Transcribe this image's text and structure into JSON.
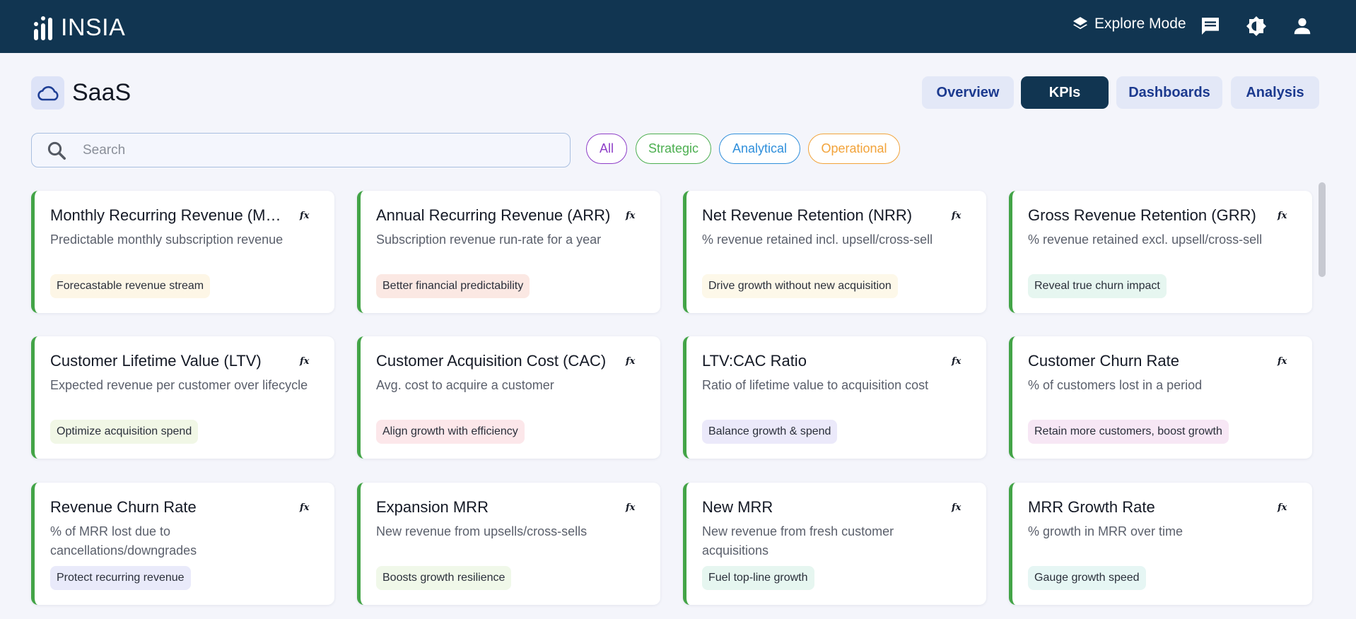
{
  "app": {
    "logo_text": "INSIA",
    "explore_mode_label": "Explore Mode",
    "header_icons": [
      "chat-icon",
      "brightness-icon",
      "user-icon"
    ]
  },
  "page": {
    "title": "SaaS",
    "icon": "cloud-icon"
  },
  "tabs": [
    {
      "label": "Overview",
      "active": false
    },
    {
      "label": "KPIs",
      "active": true
    },
    {
      "label": "Dashboards",
      "active": false
    },
    {
      "label": "Analysis",
      "active": false
    }
  ],
  "search": {
    "placeholder": "Search",
    "value": ""
  },
  "filters": [
    {
      "label": "All",
      "color": "#8e3ec8"
    },
    {
      "label": "Strategic",
      "color": "#4caf50"
    },
    {
      "label": "Analytical",
      "color": "#2f8fdb"
    },
    {
      "label": "Operational",
      "color": "#f2a33a"
    }
  ],
  "colors": {
    "header_bg": "#113551",
    "card_accent": "#43a447",
    "tab_bg": "#e3e8f7",
    "tab_text": "#1c3a8f"
  },
  "kpis": [
    {
      "title": "Monthly Recurring Revenue (MRR)",
      "description": "Predictable monthly subscription revenue",
      "tag": "Forecastable revenue stream",
      "tag_bg": "#fdf6e6"
    },
    {
      "title": "Annual Recurring Revenue (ARR)",
      "description": "Subscription revenue run-rate for a year",
      "tag": "Better financial predictability",
      "tag_bg": "#fbe8e3"
    },
    {
      "title": "Net Revenue Retention (NRR)",
      "description": "% revenue retained incl. upsell/cross-sell",
      "tag": "Drive growth without new acquisition",
      "tag_bg": "#fdf8e9"
    },
    {
      "title": "Gross Revenue Retention (GRR)",
      "description": "% revenue retained excl. upsell/cross-sell",
      "tag": "Reveal true churn impact",
      "tag_bg": "#e6f6f0"
    },
    {
      "title": "Customer Lifetime Value (LTV)",
      "description": "Expected revenue per customer over lifecycle",
      "tag": "Optimize acquisition spend",
      "tag_bg": "#f1f7e6"
    },
    {
      "title": "Customer Acquisition Cost (CAC)",
      "description": "Avg. cost to acquire a customer",
      "tag": "Align growth with efficiency",
      "tag_bg": "#fce7ea"
    },
    {
      "title": "LTV:CAC Ratio",
      "description": "Ratio of lifetime value to acquisition cost",
      "tag": "Balance growth & spend",
      "tag_bg": "#ebe9fa"
    },
    {
      "title": "Customer Churn Rate",
      "description": "% of customers lost in a period",
      "tag": "Retain more customers, boost growth",
      "tag_bg": "#f7e7f5"
    },
    {
      "title": "Revenue Churn Rate",
      "description": "% of MRR lost due to cancellations/downgrades",
      "tag": "Protect recurring revenue",
      "tag_bg": "#e9eafa"
    },
    {
      "title": "Expansion MRR",
      "description": "New revenue from upsells/cross-sells",
      "tag": "Boosts growth resilience",
      "tag_bg": "#f0f8e9"
    },
    {
      "title": "New MRR",
      "description": "New revenue from fresh customer acquisitions",
      "tag": "Fuel top-line growth",
      "tag_bg": "#e6f6f0"
    },
    {
      "title": "MRR Growth Rate",
      "description": "% growth in MRR over time",
      "tag": "Gauge growth speed",
      "tag_bg": "#e6f6f4"
    }
  ]
}
